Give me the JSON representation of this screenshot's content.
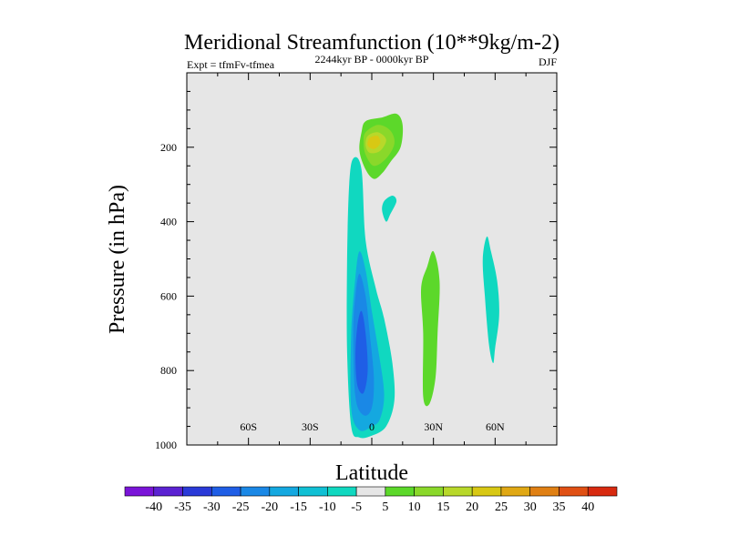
{
  "chart_data": {
    "type": "contour",
    "title": "Meridional Streamfunction (10**9kg/m-2)",
    "subtitle_left": "Expt = tfmFv-tfmea",
    "subtitle_center": "2244kyr BP - 0000kyr BP",
    "subtitle_right": "DJF",
    "xlabel": "Latitude",
    "ylabel": "Pressure (in hPa)",
    "xlim": [
      -90,
      90
    ],
    "ylim": [
      1000,
      0
    ],
    "x_ticks": [
      {
        "value": -60,
        "label": "60S"
      },
      {
        "value": -30,
        "label": "30S"
      },
      {
        "value": 0,
        "label": "0"
      },
      {
        "value": 30,
        "label": "30N"
      },
      {
        "value": 60,
        "label": "60N"
      }
    ],
    "y_ticks": [
      {
        "value": 200,
        "label": "200"
      },
      {
        "value": 400,
        "label": "400"
      },
      {
        "value": 600,
        "label": "600"
      },
      {
        "value": 800,
        "label": "800"
      },
      {
        "value": 1000,
        "label": "1000"
      }
    ],
    "background_color": "#e6e6e6",
    "colorbar": {
      "labels": [
        "-40",
        "-35",
        "-30",
        "-25",
        "-20",
        "-15",
        "-10",
        "-5",
        "5",
        "10",
        "15",
        "20",
        "25",
        "30",
        "35",
        "40"
      ],
      "colors": [
        "#7a14d8",
        "#5b22d2",
        "#2a3ad8",
        "#1f5ee6",
        "#1a88e6",
        "#14a8e0",
        "#10c0d4",
        "#10d8c0",
        "#e6e6e6",
        "#5cd82a",
        "#8ad82a",
        "#b8d82a",
        "#d8c814",
        "#e0a814",
        "#e08014",
        "#e05014",
        "#d82a10"
      ]
    },
    "regions": [
      {
        "name": "negative-band-outer",
        "color": "#10d8c0",
        "points": [
          [
            -9,
            230
          ],
          [
            -5,
            260
          ],
          [
            -3,
            450
          ],
          [
            2,
            580
          ],
          [
            6,
            660
          ],
          [
            10,
            780
          ],
          [
            11,
            880
          ],
          [
            7,
            950
          ],
          [
            0,
            975
          ],
          [
            -6,
            980
          ],
          [
            -10,
            950
          ],
          [
            -12,
            750
          ],
          [
            -12,
            500
          ],
          [
            -11,
            300
          ]
        ]
      },
      {
        "name": "negative-band-15",
        "color": "#14a8e0",
        "points": [
          [
            -6,
            480
          ],
          [
            -3,
            530
          ],
          [
            0,
            640
          ],
          [
            3,
            740
          ],
          [
            6,
            860
          ],
          [
            4,
            930
          ],
          [
            0,
            950
          ],
          [
            -6,
            960
          ],
          [
            -10,
            900
          ],
          [
            -10,
            700
          ],
          [
            -8,
            550
          ]
        ]
      },
      {
        "name": "negative-band-20",
        "color": "#1a88e6",
        "points": [
          [
            -6,
            540
          ],
          [
            -3,
            600
          ],
          [
            -1,
            700
          ],
          [
            1,
            820
          ],
          [
            0,
            900
          ],
          [
            -4,
            920
          ],
          [
            -8,
            870
          ],
          [
            -9,
            700
          ],
          [
            -8,
            600
          ]
        ]
      },
      {
        "name": "negative-band-25",
        "color": "#1f5ee6",
        "points": [
          [
            -5,
            640
          ],
          [
            -3,
            700
          ],
          [
            -2,
            800
          ],
          [
            -4,
            860
          ],
          [
            -7,
            840
          ],
          [
            -8,
            760
          ],
          [
            -7,
            680
          ]
        ]
      },
      {
        "name": "upper-positive-outer",
        "color": "#5cd82a",
        "points": [
          [
            -3,
            130
          ],
          [
            5,
            120
          ],
          [
            12,
            110
          ],
          [
            15,
            140
          ],
          [
            14,
            200
          ],
          [
            9,
            240
          ],
          [
            5,
            270
          ],
          [
            1,
            285
          ],
          [
            -3,
            260
          ],
          [
            -6,
            210
          ],
          [
            -5,
            160
          ]
        ]
      },
      {
        "name": "upper-positive-10",
        "color": "#8ad82a",
        "points": [
          [
            -3,
            160
          ],
          [
            3,
            140
          ],
          [
            9,
            155
          ],
          [
            11,
            190
          ],
          [
            7,
            230
          ],
          [
            1,
            250
          ],
          [
            -3,
            220
          ],
          [
            -4,
            185
          ]
        ]
      },
      {
        "name": "upper-positive-15",
        "color": "#b8d82a",
        "points": [
          [
            -2,
            170
          ],
          [
            3,
            160
          ],
          [
            7,
            180
          ],
          [
            4,
            210
          ],
          [
            -1,
            215
          ],
          [
            -3,
            195
          ]
        ]
      },
      {
        "name": "upper-positive-20",
        "color": "#d8c814",
        "points": [
          [
            -1,
            175
          ],
          [
            3,
            170
          ],
          [
            4,
            190
          ],
          [
            1,
            205
          ],
          [
            -2,
            195
          ]
        ]
      },
      {
        "name": "small-negative-400",
        "color": "#10d8c0",
        "points": [
          [
            6,
            345
          ],
          [
            10,
            330
          ],
          [
            12,
            345
          ],
          [
            9,
            380
          ],
          [
            7,
            400
          ],
          [
            5,
            370
          ]
        ]
      },
      {
        "name": "positive-30N",
        "color": "#5cd82a",
        "points": [
          [
            30,
            480
          ],
          [
            33,
            560
          ],
          [
            32,
            700
          ],
          [
            31,
            820
          ],
          [
            28,
            890
          ],
          [
            25,
            870
          ],
          [
            25,
            700
          ],
          [
            24,
            580
          ],
          [
            27,
            520
          ]
        ]
      },
      {
        "name": "negative-60N",
        "color": "#10d8c0",
        "points": [
          [
            56,
            440
          ],
          [
            58,
            480
          ],
          [
            61,
            560
          ],
          [
            62,
            650
          ],
          [
            60,
            740
          ],
          [
            59,
            780
          ],
          [
            57,
            730
          ],
          [
            55,
            600
          ],
          [
            54,
            500
          ]
        ]
      }
    ]
  }
}
